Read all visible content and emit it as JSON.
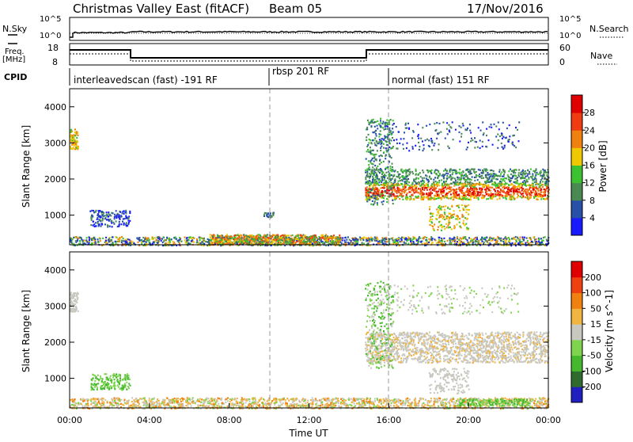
{
  "header": {
    "title": "Christmas Valley East (fitACF)",
    "beam": "Beam 05",
    "date": "17/Nov/2016"
  },
  "noise_panel": {
    "left_label": "N.Sky",
    "right_label": "N.Search",
    "left_ticks": [
      "10^5",
      "10^0"
    ],
    "right_ticks": [
      "10^5",
      "10^0"
    ]
  },
  "freq_panel": {
    "left_label_line1": "Freq.",
    "left_label_line2": "[MHz]",
    "right_label": "Nave",
    "left_ticks": [
      "18",
      "8"
    ],
    "right_ticks": [
      "60",
      "0"
    ]
  },
  "cpid": {
    "label": "CPID",
    "segments": [
      {
        "text": "interleavedscan (fast) -191 RF",
        "start_hour": 0,
        "end_hour": 10
      },
      {
        "text": "rbsp 201 RF",
        "start_hour": 10,
        "end_hour": 16
      },
      {
        "text": "normal (fast) 151 RF",
        "start_hour": 16,
        "end_hour": 24
      }
    ]
  },
  "chart_data": [
    {
      "type": "heatmap",
      "panel": "power",
      "ylabel": "Slant Range [km]",
      "xlabel": "",
      "ylim": [
        180,
        4500
      ],
      "xlim_hours": [
        0,
        24
      ],
      "yticks": [
        1000,
        2000,
        3000,
        4000
      ],
      "colorbar_label": "Power [dB]",
      "colorbar_ticks": [
        "4",
        "8",
        "12",
        "16",
        "20",
        "24",
        "28"
      ],
      "colorbar_colors": [
        "#1a1aff",
        "#2850a8",
        "#4a8a52",
        "#3cc230",
        "#f0c800",
        "#f08010",
        "#f03c10",
        "#e00000"
      ],
      "features": [
        {
          "hours": [
            0,
            1.6
          ],
          "range_km": [
            180,
            420
          ],
          "level": "mixed"
        },
        {
          "hours": [
            1.0,
            3.0
          ],
          "range_km": [
            700,
            1150
          ],
          "level": "low"
        },
        {
          "hours": [
            3.0,
            13.5
          ],
          "range_km": [
            180,
            500
          ],
          "level": "medium"
        },
        {
          "hours": [
            14.8,
            24
          ],
          "range_km": [
            1200,
            2500
          ],
          "level": "high"
        },
        {
          "hours": [
            14.8,
            22.5
          ],
          "range_km": [
            2800,
            3600
          ],
          "level": "low"
        },
        {
          "hours": [
            0,
            0.4
          ],
          "range_km": [
            2850,
            3400
          ],
          "level": "medium"
        }
      ]
    },
    {
      "type": "heatmap",
      "panel": "velocity",
      "ylabel": "Slant Range [km]",
      "xlabel": "Time UT",
      "ylim": [
        180,
        4500
      ],
      "xlim_hours": [
        0,
        24
      ],
      "yticks": [
        1000,
        2000,
        3000,
        4000
      ],
      "xticks": [
        "00:00",
        "04:00",
        "08:00",
        "12:00",
        "16:00",
        "20:00",
        "00:00"
      ],
      "colorbar_label": "Velocity [m s^-1]",
      "colorbar_ticks": [
        "200",
        "100",
        "50",
        "15",
        "-15",
        "-50",
        "-100",
        "-200"
      ],
      "colorbar_colors": [
        "#2020c0",
        "#2f6b2f",
        "#46b82e",
        "#7fd44d",
        "#c8c8c0",
        "#f0b440",
        "#f08010",
        "#f04010",
        "#e00000"
      ]
    }
  ]
}
